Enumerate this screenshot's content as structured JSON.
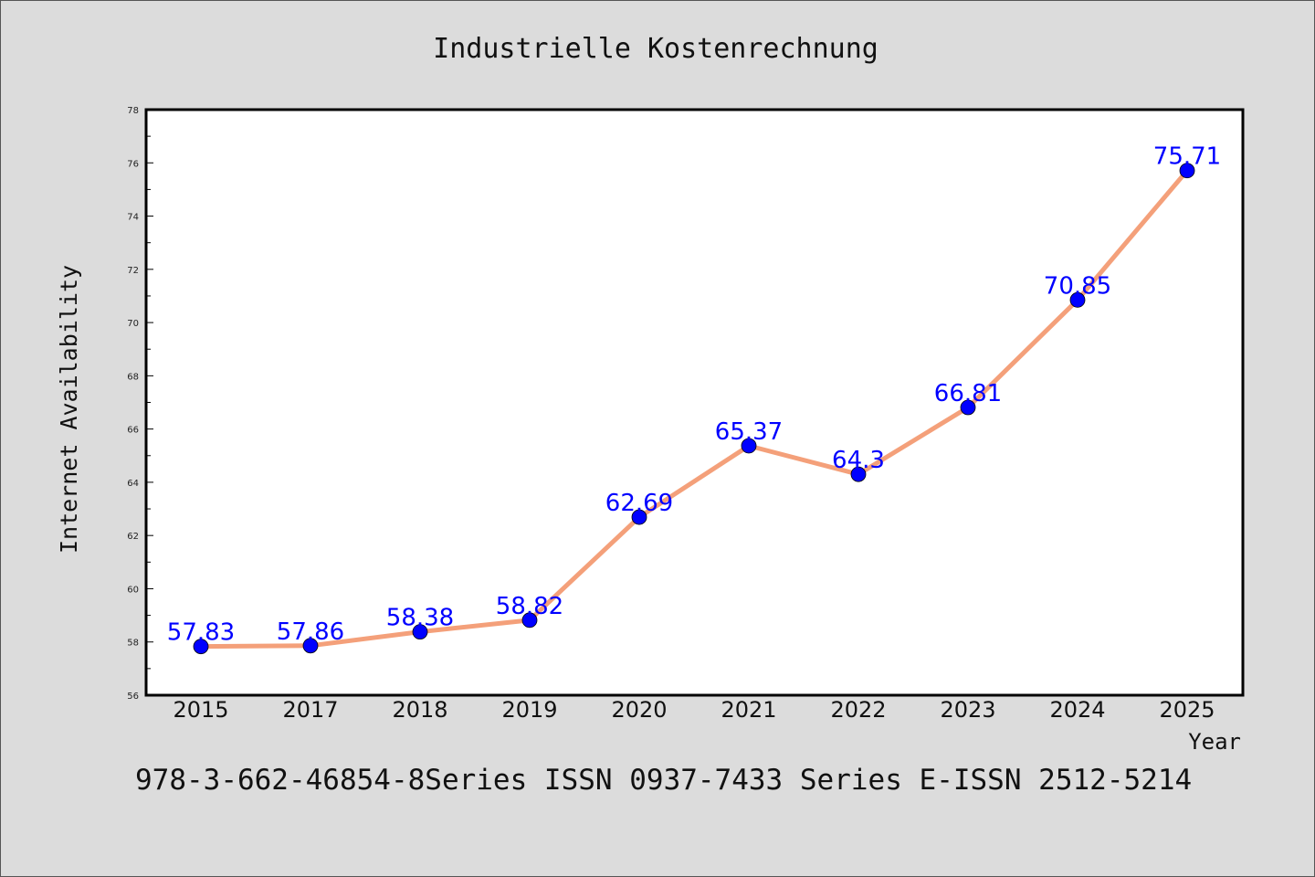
{
  "chart_data": {
    "type": "line",
    "title": "Industrielle Kostenrechnung",
    "xlabel": "Year",
    "ylabel": "Internet Availability",
    "categories": [
      "2015",
      "2017",
      "2018",
      "2019",
      "2020",
      "2021",
      "2022",
      "2023",
      "2024",
      "2025"
    ],
    "values": [
      57.83,
      57.86,
      58.38,
      58.82,
      62.69,
      65.37,
      64.3,
      66.81,
      70.85,
      75.71
    ],
    "data_labels": [
      "57.83",
      "57.86",
      "58.38",
      "58.82",
      "62.69",
      "65.37",
      "64.3",
      "66.81",
      "70.85",
      "75.71"
    ],
    "ylim": [
      56,
      78
    ],
    "yticks": [
      "56",
      "58",
      "60",
      "62",
      "64",
      "66",
      "68",
      "70",
      "72",
      "74",
      "76",
      "78"
    ],
    "grid": false,
    "line_color": "#f4a07a",
    "marker_color": "#0000ff",
    "label_color": "#0000ff"
  },
  "footer": {
    "text": "978-3-662-46854-8Series ISSN 0937-7433 Series E-ISSN 2512-5214"
  }
}
